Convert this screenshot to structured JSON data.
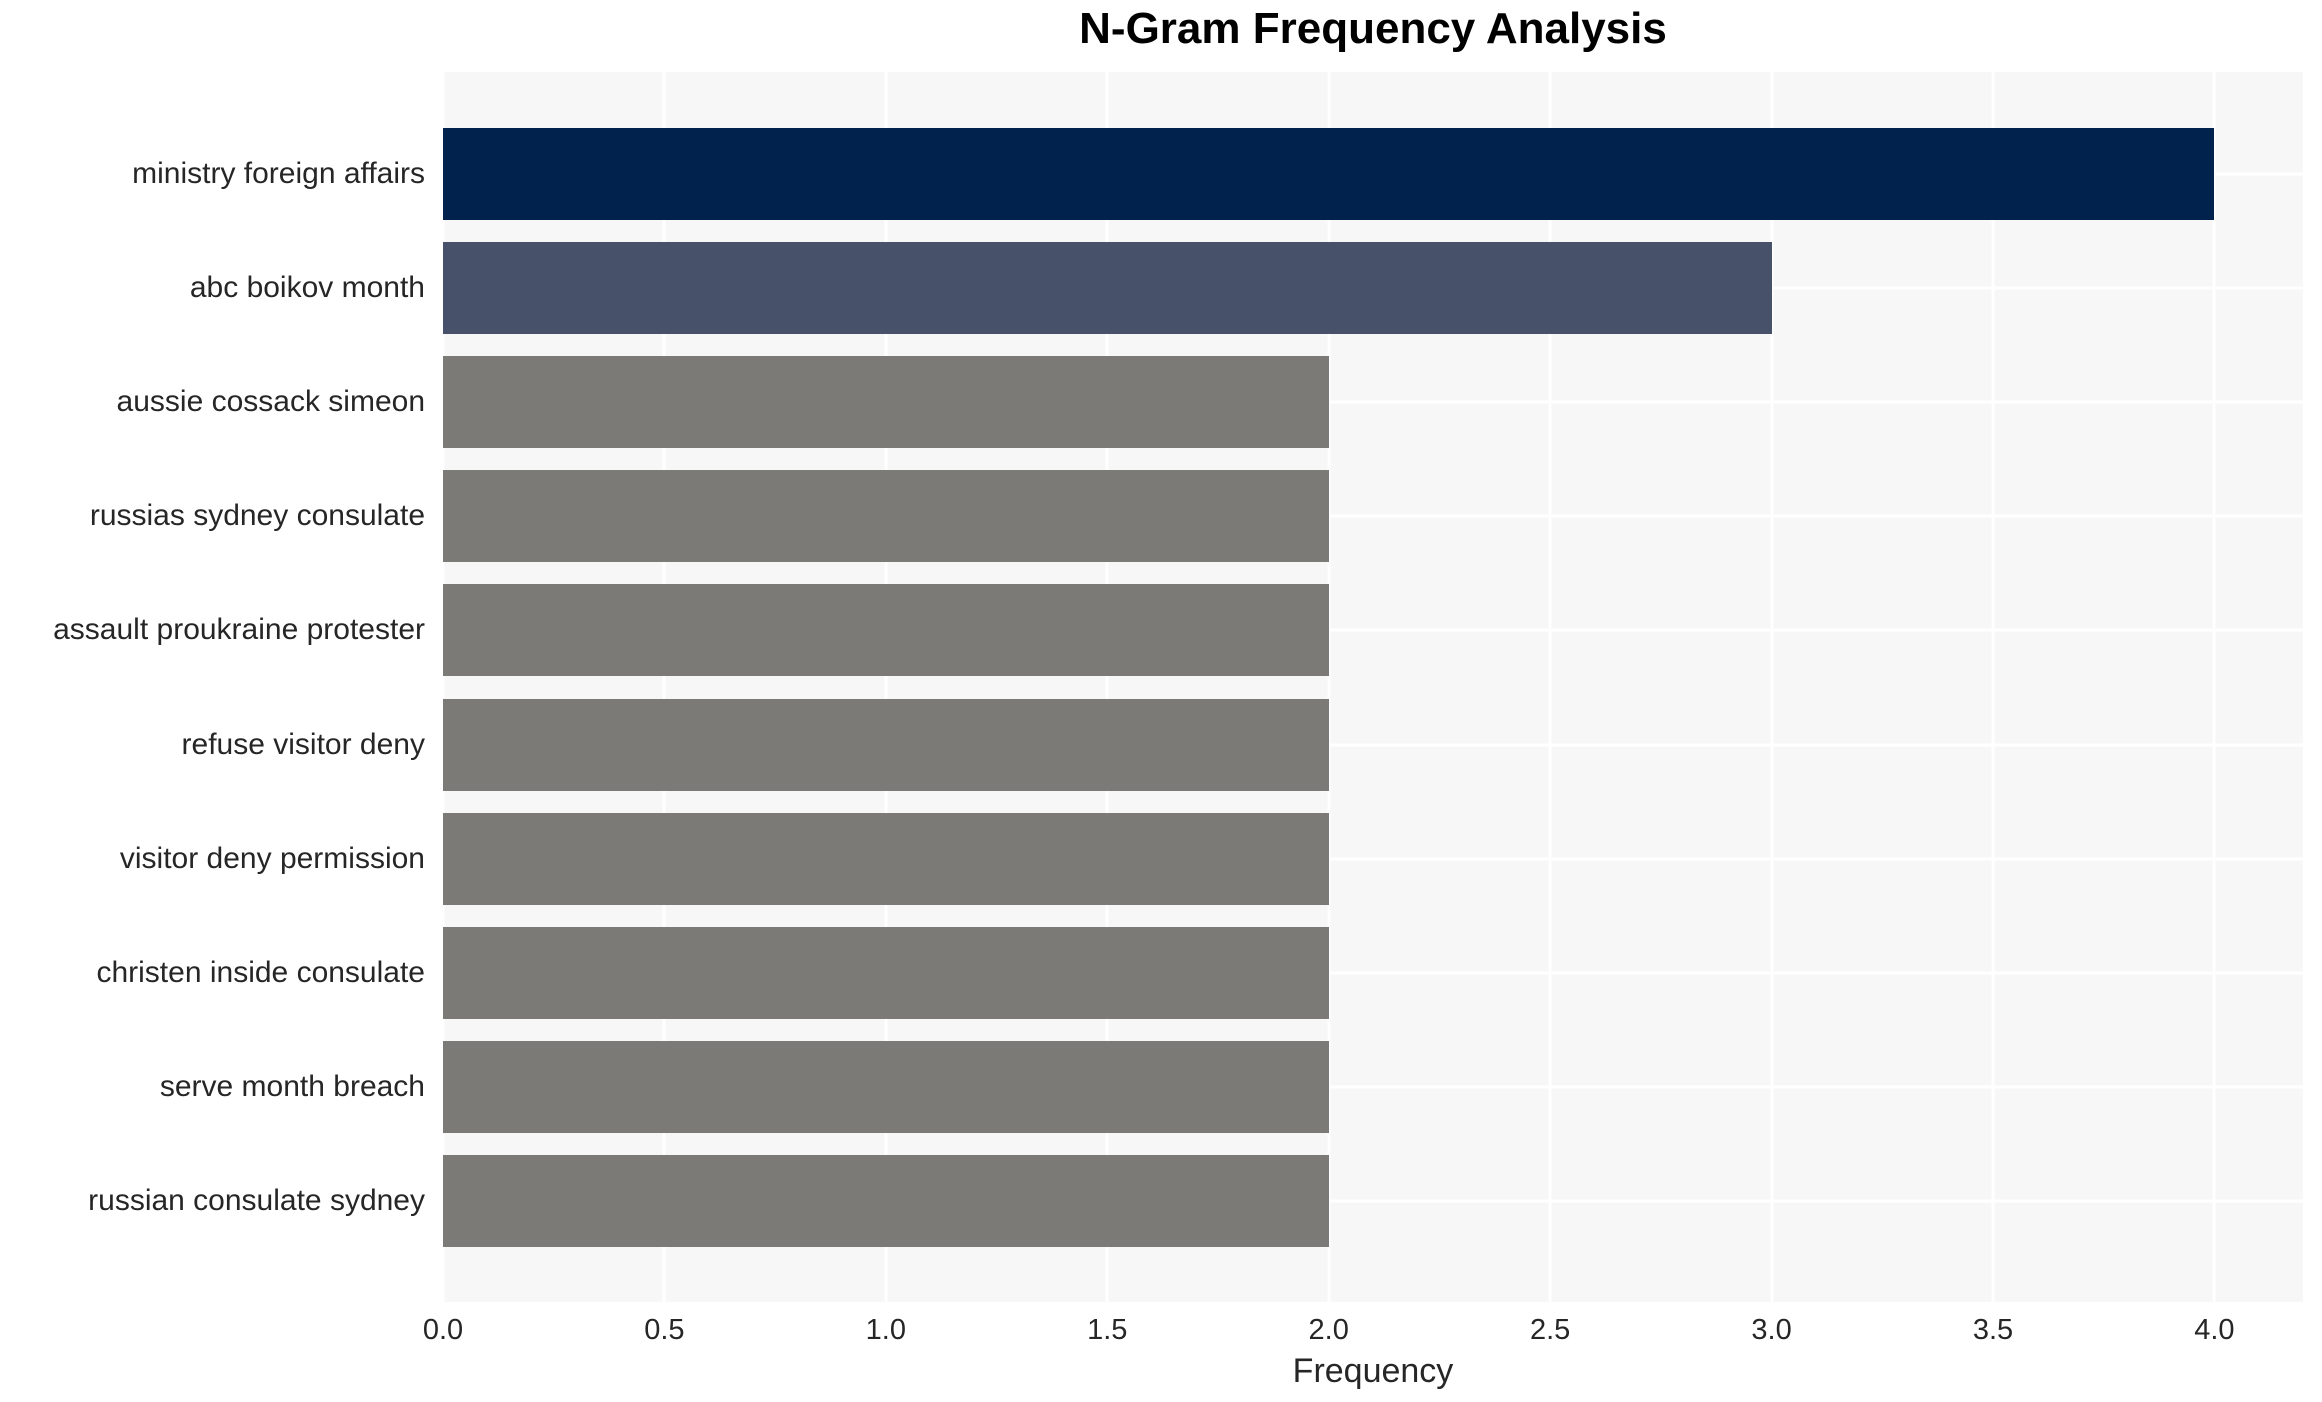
{
  "chart_data": {
    "type": "bar",
    "orientation": "horizontal",
    "title": "N-Gram Frequency Analysis",
    "xlabel": "Frequency",
    "ylabel": "",
    "categories": [
      "ministry foreign affairs",
      "abc boikov month",
      "aussie cossack simeon",
      "russias sydney consulate",
      "assault proukraine protester",
      "refuse visitor deny",
      "visitor deny permission",
      "christen inside consulate",
      "serve month breach",
      "russian consulate sydney"
    ],
    "values": [
      4,
      3,
      2,
      2,
      2,
      2,
      2,
      2,
      2,
      2
    ],
    "bar_colors": [
      "#01224d",
      "#475169",
      "#7b7a77",
      "#7b7a77",
      "#7b7a77",
      "#7b7a77",
      "#7b7a77",
      "#7b7a77",
      "#7b7a77",
      "#7b7a77"
    ],
    "xlim": [
      0,
      4.2
    ],
    "xticks": [
      0.0,
      0.5,
      1.0,
      1.5,
      2.0,
      2.5,
      3.0,
      3.5,
      4.0
    ],
    "xtick_labels": [
      "0.0",
      "0.5",
      "1.0",
      "1.5",
      "2.0",
      "2.5",
      "3.0",
      "3.5",
      "4.0"
    ],
    "grid": true,
    "legend": false,
    "plot_background": "#f7f7f8",
    "grid_color": "#ffffff",
    "text_color": "#262626"
  }
}
